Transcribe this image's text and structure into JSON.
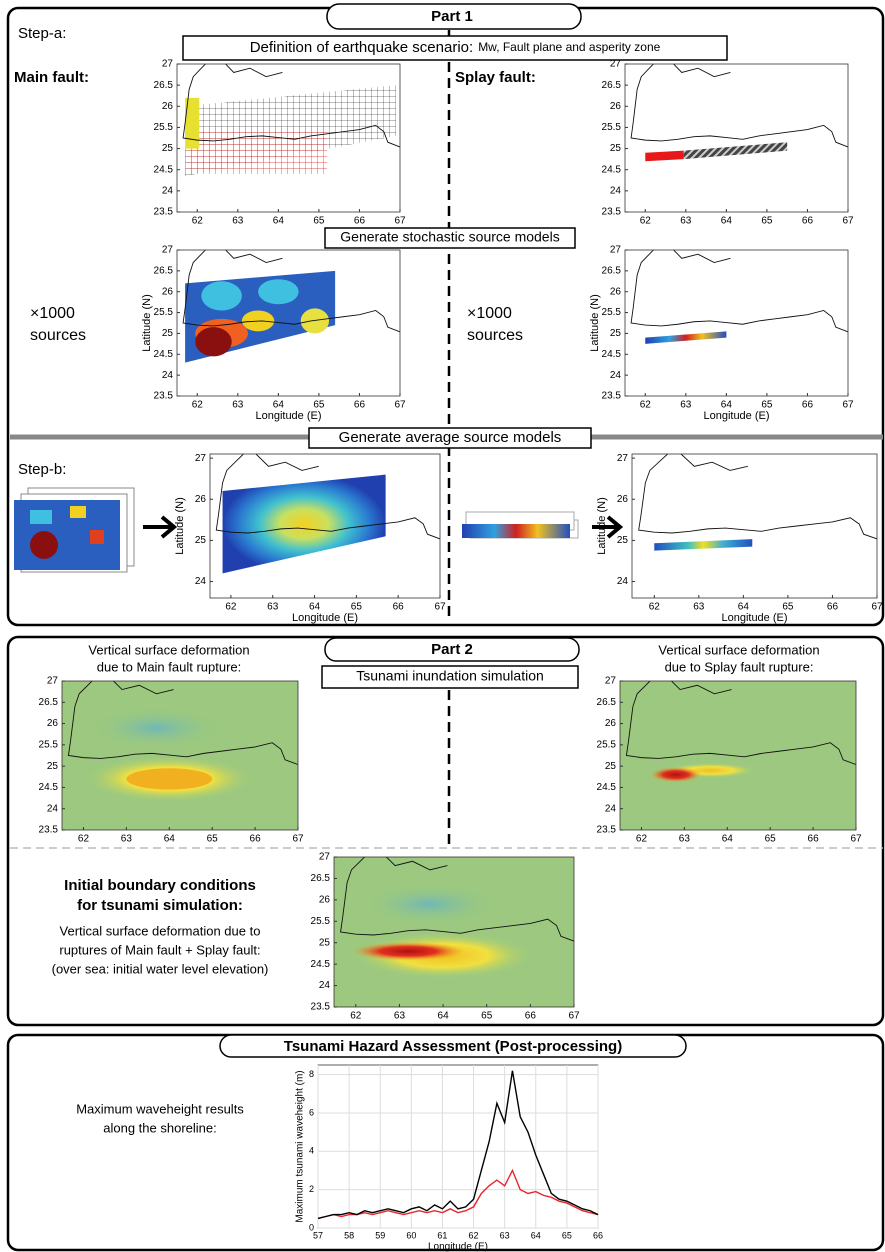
{
  "part1": {
    "title": "Part 1",
    "step_a": "Step-a:",
    "scenario_title": "Definition of earthquake scenario:",
    "scenario_detail": "Mw, Fault plane and asperity zone",
    "main_fault": "Main fault:",
    "splay_fault": "Splay fault:",
    "stochastic": "Generate stochastic source models",
    "count_main": [
      "×1000",
      "sources"
    ],
    "count_splay": [
      "×1000",
      "sources"
    ],
    "average": "Generate average source models",
    "step_b": "Step-b:"
  },
  "part2": {
    "title": "Part 2",
    "subtitle": "Tsunami inundation simulation",
    "main_deformation": [
      "Vertical surface deformation",
      "due to Main fault rupture:"
    ],
    "splay_deformation": [
      "Vertical surface deformation",
      "due to Splay fault rupture:"
    ],
    "initial_title": [
      "Initial boundary conditions",
      "for tsunami simulation:"
    ],
    "initial_text": [
      "Vertical surface deformation due to",
      "ruptures of Main fault + Splay fault:",
      "(over sea: initial water level elevation)"
    ]
  },
  "part3": {
    "title": "Tsunami Hazard Assessment (Post-processing)",
    "description": [
      "Maximum waveheight results",
      "along the shoreline:"
    ]
  },
  "maps": [
    {
      "xlim": [
        61.5,
        67
      ],
      "ylim": [
        23.5,
        27
      ],
      "xticks": [
        62,
        63,
        64,
        65,
        66,
        67
      ],
      "yticks": [
        23.5,
        24,
        24.5,
        25,
        25.5,
        26,
        26.5,
        27
      ]
    },
    {
      "xlim": [
        61.5,
        67
      ],
      "ylim": [
        23.5,
        27
      ],
      "xticks": [
        62,
        63,
        64,
        65,
        66,
        67
      ],
      "yticks": [
        23.5,
        24,
        24.5,
        25,
        25.5,
        26,
        26.5,
        27
      ]
    },
    {
      "xlim": [
        61.5,
        67
      ],
      "ylim": [
        23.5,
        27
      ],
      "xticks": [
        62,
        63,
        64,
        65,
        66,
        67
      ],
      "yticks": [
        23.5,
        24,
        24.5,
        25,
        25.5,
        26,
        26.5,
        27
      ],
      "xlabel": "Longitude (E)",
      "ylabel": "Latitude (N)"
    },
    {
      "xlim": [
        61.5,
        67
      ],
      "ylim": [
        23.5,
        27
      ],
      "xticks": [
        62,
        63,
        64,
        65,
        66,
        67
      ],
      "yticks": [
        23.5,
        24,
        24.5,
        25,
        25.5,
        26,
        26.5,
        27
      ],
      "xlabel": "Longitude (E)",
      "ylabel": "Latitude (N)"
    },
    {
      "xlim": [
        61.5,
        67
      ],
      "ylim": [
        23.6,
        27.1
      ],
      "xticks": [
        62,
        63,
        64,
        65,
        66,
        67
      ],
      "yticks": [
        24,
        25,
        26,
        27
      ],
      "xlabel": "Longitude (E)",
      "ylabel": "Latitude (N)"
    },
    {
      "xlim": [
        61.5,
        67
      ],
      "ylim": [
        23.6,
        27.1
      ],
      "xticks": [
        62,
        63,
        64,
        65,
        66,
        67
      ],
      "yticks": [
        24,
        25,
        26,
        27
      ],
      "xlabel": "Longitude (E)",
      "ylabel": "Latitude (N)"
    },
    {
      "xlim": [
        61.5,
        67
      ],
      "ylim": [
        23.5,
        27
      ],
      "xticks": [
        62,
        63,
        64,
        65,
        66,
        67
      ],
      "yticks": [
        23.5,
        24,
        24.5,
        25,
        25.5,
        26,
        26.5,
        27
      ]
    },
    {
      "xlim": [
        61.5,
        67
      ],
      "ylim": [
        23.5,
        27
      ],
      "xticks": [
        62,
        63,
        64,
        65,
        66,
        67
      ],
      "yticks": [
        23.5,
        24,
        24.5,
        25,
        25.5,
        26,
        26.5,
        27
      ]
    },
    {
      "xlim": [
        61.5,
        67
      ],
      "ylim": [
        23.5,
        27
      ],
      "xticks": [
        62,
        63,
        64,
        65,
        66,
        67
      ],
      "yticks": [
        23.5,
        24,
        24.5,
        25,
        25.5,
        26,
        26.5,
        27
      ]
    }
  ],
  "chart_data": {
    "type": "line",
    "xlabel": "Longitude (E)",
    "ylabel": "Maximum tsunami waveheight (m)",
    "xlim": [
      57,
      66
    ],
    "ylim": [
      0,
      8.5
    ],
    "xticks": [
      57,
      58,
      59,
      60,
      61,
      62,
      63,
      64,
      65,
      66
    ],
    "yticks": [
      0,
      2,
      4,
      6,
      8
    ],
    "grid": true,
    "x": [
      57,
      57.25,
      57.5,
      57.75,
      58,
      58.25,
      58.5,
      58.75,
      59,
      59.25,
      59.5,
      59.75,
      60,
      60.25,
      60.5,
      60.75,
      61,
      61.25,
      61.5,
      61.75,
      62,
      62.25,
      62.5,
      62.75,
      63,
      63.25,
      63.5,
      63.75,
      64,
      64.25,
      64.5,
      64.75,
      65,
      65.25,
      65.5,
      65.75,
      66
    ],
    "series": [
      {
        "color": "#000000",
        "values": [
          0.5,
          0.6,
          0.7,
          0.7,
          0.8,
          0.7,
          0.9,
          0.8,
          0.9,
          1.0,
          0.9,
          0.8,
          1.0,
          1.1,
          0.9,
          1.2,
          1.0,
          1.4,
          1.0,
          1.1,
          1.5,
          3.0,
          4.5,
          6.5,
          5.5,
          8.2,
          5.8,
          5.0,
          3.8,
          2.8,
          1.8,
          1.5,
          1.4,
          1.2,
          1.0,
          0.9,
          0.7
        ]
      },
      {
        "color": "#e8262a",
        "values": [
          0.5,
          0.6,
          0.7,
          0.6,
          0.7,
          0.7,
          0.8,
          0.7,
          0.8,
          0.9,
          0.8,
          0.7,
          0.8,
          0.9,
          0.8,
          0.9,
          0.8,
          1.0,
          0.8,
          0.9,
          1.1,
          1.8,
          2.2,
          2.5,
          2.2,
          3.0,
          2.0,
          1.8,
          1.9,
          1.7,
          1.6,
          1.4,
          1.3,
          1.1,
          0.9,
          0.8,
          0.7
        ]
      }
    ]
  }
}
